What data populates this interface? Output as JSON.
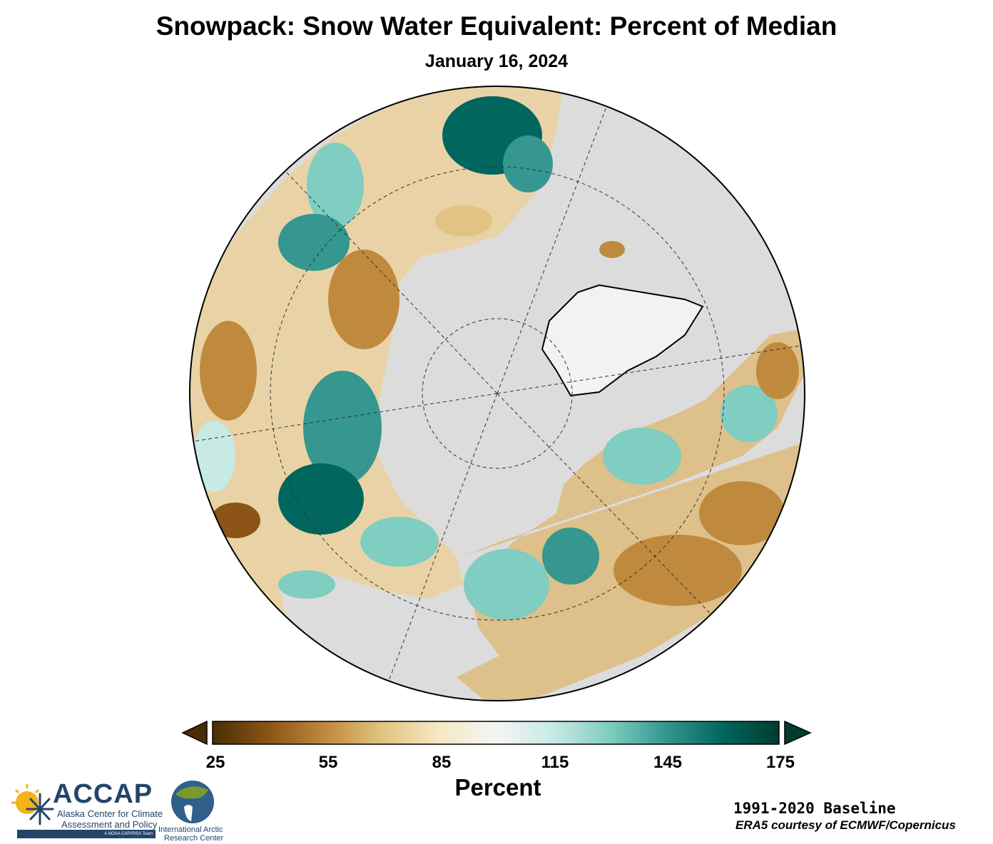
{
  "title": "Snowpack: Snow Water Equivalent: Percent of Median",
  "subtitle": "January 16, 2024",
  "colorbar": {
    "label": "Percent",
    "ticks": [
      "25",
      "55",
      "85",
      "115",
      "145",
      "175"
    ],
    "min": 25,
    "max": 175,
    "extend": "both",
    "colors": [
      "#4a2d05",
      "#8c5416",
      "#c08a3e",
      "#e2c482",
      "#f6e7c4",
      "#f5f5f5",
      "#c7eae5",
      "#80cdc1",
      "#35978f",
      "#01665e",
      "#003c30"
    ]
  },
  "map": {
    "projection": "north polar stereographic",
    "ocean_color": "#dcdcdc",
    "greenland_color": "#f2f2f2",
    "graticule": "dashed"
  },
  "footer": {
    "baseline": "1991-2020 Baseline",
    "credit": "ERA5 courtesy of ECMWF/Copernicus"
  },
  "logos": {
    "accap": {
      "name": "ACCAP",
      "line1": "Alaska Center for Climate",
      "line2": "Assessment and Policy",
      "tagline": "A NOAA CAP/RISA Team"
    },
    "iarc": {
      "line1": "International Arctic",
      "line2": "Research Center"
    }
  }
}
